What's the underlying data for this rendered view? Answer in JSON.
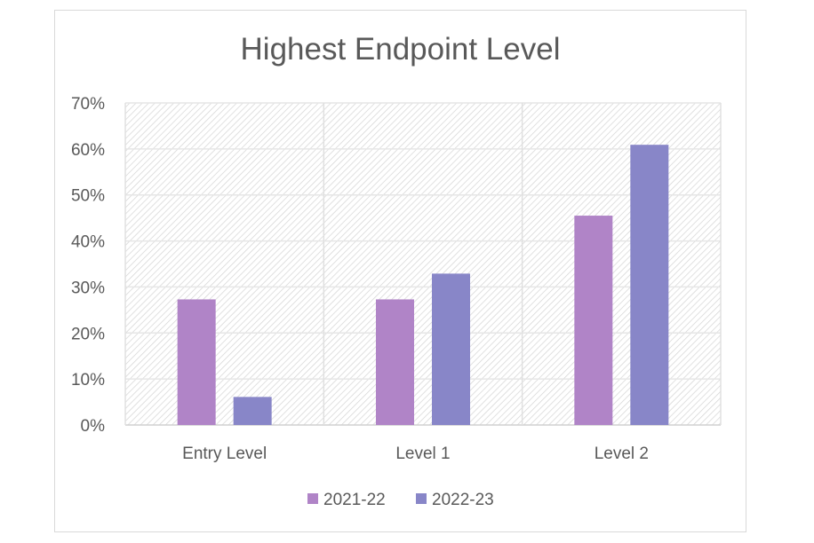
{
  "chart_data": {
    "type": "bar",
    "title": "Highest Endpoint Level",
    "categories": [
      "Entry Level",
      "Level 1",
      "Level 2"
    ],
    "series": [
      {
        "name": "2021-22",
        "color": "#b084c7",
        "values": [
          0.273,
          0.273,
          0.455
        ]
      },
      {
        "name": "2022-23",
        "color": "#8886c8",
        "values": [
          0.061,
          0.329,
          0.609
        ]
      }
    ],
    "yticks": [
      "0%",
      "10%",
      "20%",
      "30%",
      "40%",
      "50%",
      "60%",
      "70%"
    ],
    "ylim": [
      0,
      0.7
    ],
    "grid": true,
    "legend_position": "bottom"
  }
}
